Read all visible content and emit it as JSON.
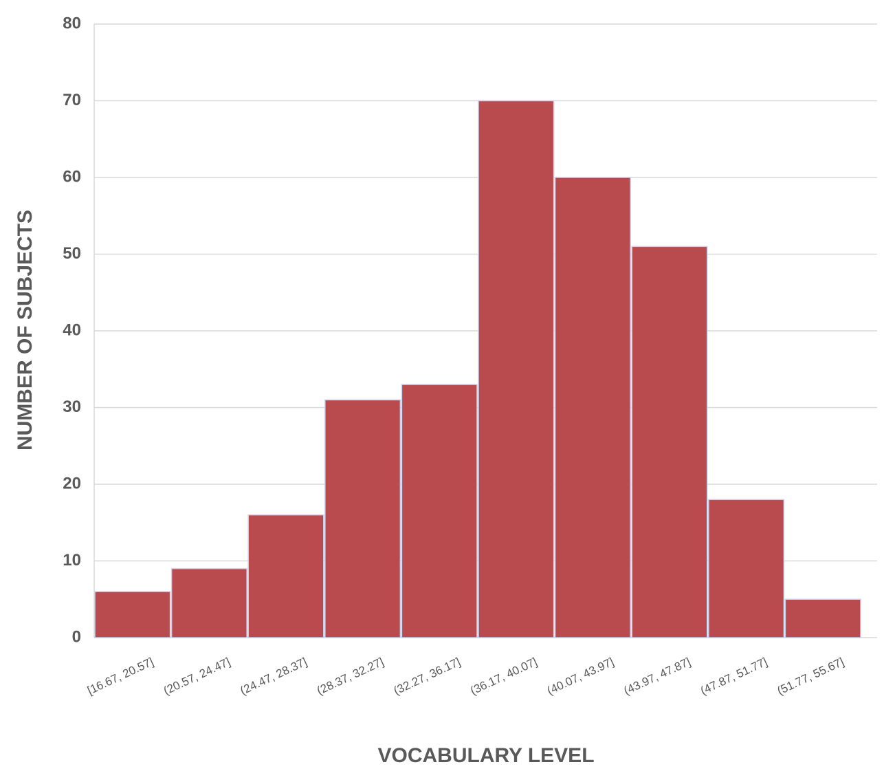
{
  "chart_data": {
    "type": "bar",
    "x_label": "VOCABULARY LEVEL",
    "y_label": "NUMBER OF SUBJECTS",
    "categories": [
      "[16.67, 20.57]",
      "(20.57, 24.47]",
      "(24.47, 28.37]",
      "(28.37, 32.27]",
      "(32.27, 36.17]",
      "(36.17, 40.07]",
      "(40.07, 43.97]",
      "(43.97, 47.87]",
      "(47.87, 51.77]",
      "(51.77, 55.67]"
    ],
    "values": [
      6,
      9,
      16,
      31,
      33,
      70,
      60,
      51,
      18,
      5
    ],
    "color": "#b94a4e",
    "ylim": [
      0,
      80
    ],
    "yticks": [
      0,
      10,
      20,
      30,
      40,
      50,
      60,
      70,
      80
    ],
    "grid": true
  }
}
